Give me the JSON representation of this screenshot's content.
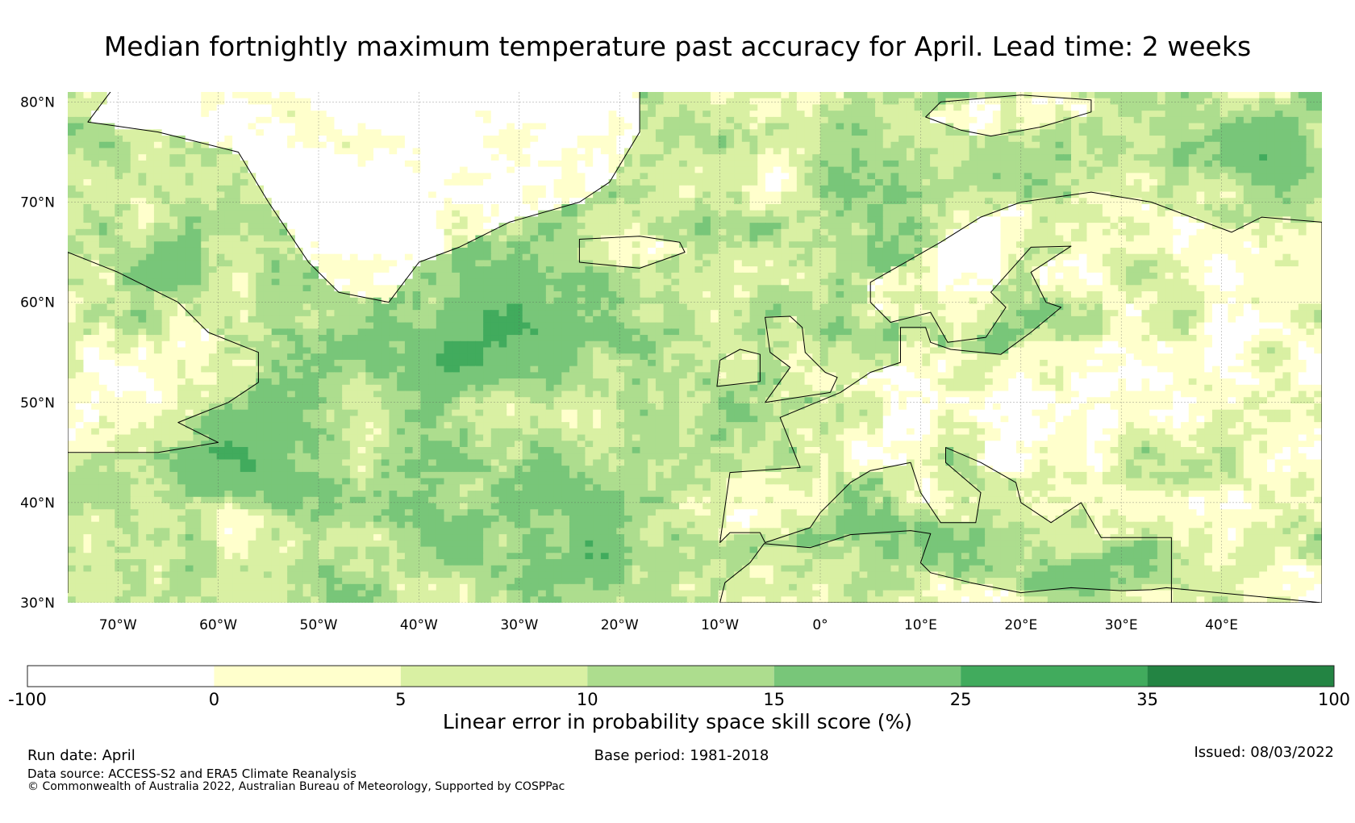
{
  "title": "Median fortnightly maximum temperature past accuracy for April. Lead time: 2 weeks",
  "map": {
    "lon_range": [
      -75,
      50
    ],
    "lat_range": [
      30,
      81
    ],
    "lat_ticks": [
      {
        "value": 30,
        "label": "30°N"
      },
      {
        "value": 40,
        "label": "40°N"
      },
      {
        "value": 50,
        "label": "50°N"
      },
      {
        "value": 60,
        "label": "60°N"
      },
      {
        "value": 70,
        "label": "70°N"
      },
      {
        "value": 80,
        "label": "80°N"
      }
    ],
    "lon_ticks": [
      {
        "value": -70,
        "label": "70°W"
      },
      {
        "value": -60,
        "label": "60°W"
      },
      {
        "value": -50,
        "label": "50°W"
      },
      {
        "value": -40,
        "label": "40°W"
      },
      {
        "value": -30,
        "label": "30°W"
      },
      {
        "value": -20,
        "label": "20°W"
      },
      {
        "value": -10,
        "label": "10°W"
      },
      {
        "value": 0,
        "label": "0°"
      },
      {
        "value": 10,
        "label": "10°E"
      },
      {
        "value": 20,
        "label": "20°E"
      },
      {
        "value": 30,
        "label": "30°E"
      },
      {
        "value": 40,
        "label": "40°E"
      }
    ],
    "grid": true
  },
  "colorbar": {
    "title": "Linear error in probability space skill score (%)",
    "boundaries": [
      "-100",
      "0",
      "5",
      "10",
      "15",
      "25",
      "35",
      "100"
    ],
    "colors": [
      "#ffffff",
      "#ffffcc",
      "#d9f0a3",
      "#addd8e",
      "#78c679",
      "#41ab5d",
      "#238443"
    ]
  },
  "footer": {
    "run_date": "Run date: April",
    "base_period": "Base period: 1981-2018",
    "issued": "Issued: 08/03/2022",
    "data_source": "Data source: ACCESS-S2 and ERA5 Climate Reanalysis",
    "copyright": "© Commonwealth of Australia 2022, Australian Bureau of Meteorology, Supported by COSPPac"
  }
}
